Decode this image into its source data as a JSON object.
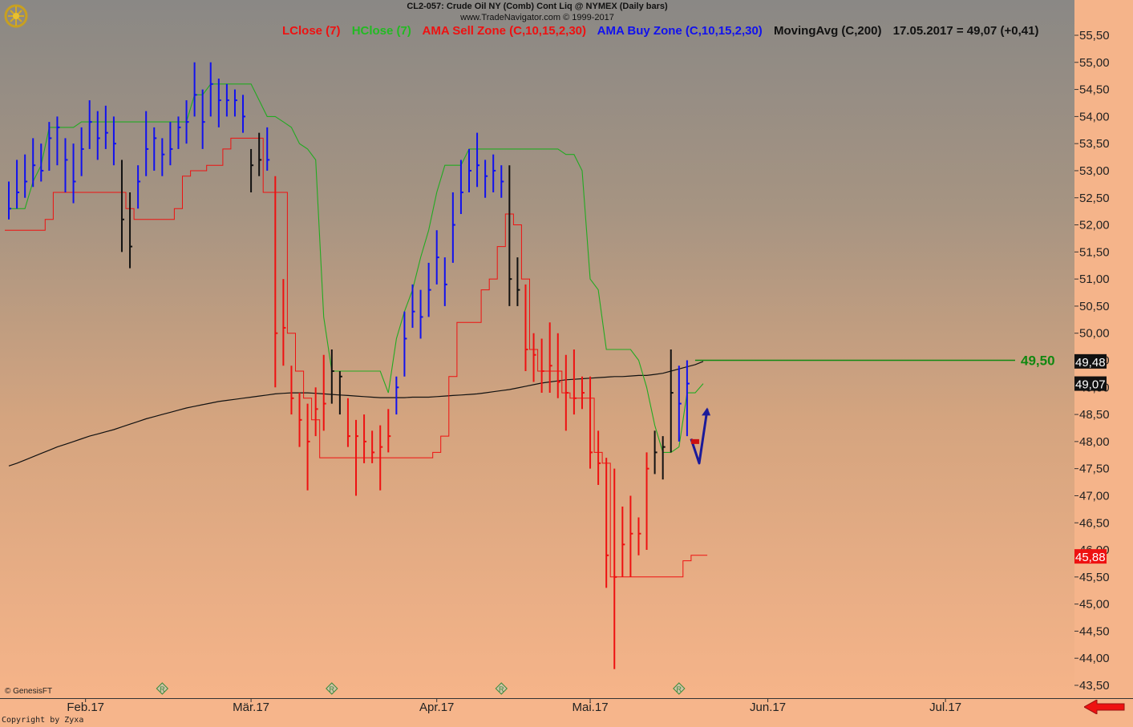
{
  "header": {
    "title": "CL2-057:  Crude Oil NY (Comb) Cont Liq @ NYMEX  (Daily bars)",
    "source": "www.TradeNavigator.com © 1999-2017"
  },
  "legend": [
    {
      "label": "LClose (7)",
      "color": "#ee1111"
    },
    {
      "label": "HClose (7)",
      "color": "#22bb22"
    },
    {
      "label": "AMA Sell Zone (C,10,15,2,30)",
      "color": "#ee1111"
    },
    {
      "label": "AMA Buy Zone (C,10,15,2,30)",
      "color": "#1111ee"
    },
    {
      "label": "MovingAvg (C,200)",
      "color": "#111111"
    },
    {
      "label": "17.05.2017 = 49,07 (+0,41)",
      "color": "#111111"
    }
  ],
  "footer": {
    "genesis": "© GenesisFT",
    "copyright": "Copyright by Zyxa"
  },
  "colors": {
    "sell": "#ee1111",
    "buy": "#1111ee",
    "neutral": "#111111",
    "hclose": "#22aa22",
    "ma": "#111111",
    "target": "#118811",
    "bg_top": "#8a8885",
    "bg_bottom": "#f6b489"
  },
  "chart_data": {
    "type": "ohlc",
    "ylim": [
      43.2,
      55.8
    ],
    "y_ticks": [
      "55,50",
      "55,00",
      "54,50",
      "54,00",
      "53,50",
      "53,00",
      "52,50",
      "52,00",
      "51,50",
      "51,00",
      "50,50",
      "50,00",
      "49,50",
      "49,00",
      "48,50",
      "48,00",
      "47,50",
      "47,00",
      "46,50",
      "46,00",
      "45,50",
      "45,00",
      "44,50",
      "44,00",
      "43,50"
    ],
    "x_labels": [
      {
        "label": "Feb.17",
        "index": 9.5
      },
      {
        "label": "Mär.17",
        "index": 30
      },
      {
        "label": "Apr.17",
        "index": 53
      },
      {
        "label": "Mai.17",
        "index": 72
      },
      {
        "label": "Jun.17",
        "index": 94
      },
      {
        "label": "Jul.17",
        "index": 116
      }
    ],
    "r_markers": [
      19,
      40,
      61,
      83
    ],
    "bars": [
      {
        "h": 52.8,
        "l": 52.1,
        "c": 52.3,
        "z": "buy"
      },
      {
        "h": 53.2,
        "l": 52.3,
        "c": 52.6,
        "z": "buy"
      },
      {
        "h": 53.3,
        "l": 52.5,
        "c": 52.8,
        "z": "buy"
      },
      {
        "h": 53.6,
        "l": 52.7,
        "c": 53.1,
        "z": "buy"
      },
      {
        "h": 53.5,
        "l": 52.8,
        "c": 53.0,
        "z": "buy"
      },
      {
        "h": 53.9,
        "l": 53.0,
        "c": 53.6,
        "z": "buy"
      },
      {
        "h": 54.0,
        "l": 53.1,
        "c": 53.8,
        "z": "buy"
      },
      {
        "h": 53.6,
        "l": 52.6,
        "c": 53.2,
        "z": "buy"
      },
      {
        "h": 53.5,
        "l": 52.4,
        "c": 52.8,
        "z": "buy"
      },
      {
        "h": 53.8,
        "l": 52.9,
        "c": 53.4,
        "z": "buy"
      },
      {
        "h": 54.3,
        "l": 53.4,
        "c": 53.9,
        "z": "buy"
      },
      {
        "h": 54.1,
        "l": 53.2,
        "c": 53.6,
        "z": "buy"
      },
      {
        "h": 54.2,
        "l": 53.4,
        "c": 53.7,
        "z": "buy"
      },
      {
        "h": 54.0,
        "l": 53.1,
        "c": 53.5,
        "z": "buy"
      },
      {
        "h": 53.2,
        "l": 51.5,
        "c": 52.1,
        "z": "neutral"
      },
      {
        "h": 52.6,
        "l": 51.2,
        "c": 51.6,
        "z": "neutral"
      },
      {
        "h": 53.1,
        "l": 52.3,
        "c": 52.8,
        "z": "buy"
      },
      {
        "h": 54.1,
        "l": 52.9,
        "c": 53.4,
        "z": "buy"
      },
      {
        "h": 53.8,
        "l": 53.0,
        "c": 53.6,
        "z": "buy"
      },
      {
        "h": 53.6,
        "l": 52.9,
        "c": 53.3,
        "z": "buy"
      },
      {
        "h": 53.9,
        "l": 53.1,
        "c": 53.4,
        "z": "buy"
      },
      {
        "h": 54.0,
        "l": 53.4,
        "c": 53.8,
        "z": "buy"
      },
      {
        "h": 54.3,
        "l": 53.5,
        "c": 53.9,
        "z": "buy"
      },
      {
        "h": 55.0,
        "l": 54.0,
        "c": 54.4,
        "z": "buy"
      },
      {
        "h": 54.5,
        "l": 53.4,
        "c": 53.9,
        "z": "buy"
      },
      {
        "h": 55.0,
        "l": 54.0,
        "c": 54.6,
        "z": "buy"
      },
      {
        "h": 54.7,
        "l": 53.8,
        "c": 54.3,
        "z": "buy"
      },
      {
        "h": 54.6,
        "l": 54.0,
        "c": 54.3,
        "z": "buy"
      },
      {
        "h": 54.5,
        "l": 54.0,
        "c": 54.3,
        "z": "buy"
      },
      {
        "h": 54.4,
        "l": 53.7,
        "c": 54.0,
        "z": "buy"
      },
      {
        "h": 53.4,
        "l": 52.6,
        "c": 53.1,
        "z": "neutral"
      },
      {
        "h": 53.7,
        "l": 52.9,
        "c": 53.2,
        "z": "neutral"
      },
      {
        "h": 53.8,
        "l": 53.0,
        "c": 53.2,
        "z": "buy"
      },
      {
        "h": 52.9,
        "l": 49.0,
        "c": 50.0,
        "z": "sell"
      },
      {
        "h": 51.0,
        "l": 49.4,
        "c": 50.1,
        "z": "sell"
      },
      {
        "h": 49.4,
        "l": 48.5,
        "c": 48.8,
        "z": "sell"
      },
      {
        "h": 48.9,
        "l": 47.9,
        "c": 48.4,
        "z": "sell"
      },
      {
        "h": 48.7,
        "l": 47.1,
        "c": 48.0,
        "z": "sell"
      },
      {
        "h": 49.0,
        "l": 48.1,
        "c": 48.6,
        "z": "sell"
      },
      {
        "h": 49.6,
        "l": 48.2,
        "c": 48.7,
        "z": "sell"
      },
      {
        "h": 49.7,
        "l": 48.7,
        "c": 49.3,
        "z": "neutral"
      },
      {
        "h": 49.3,
        "l": 48.5,
        "c": 49.2,
        "z": "neutral"
      },
      {
        "h": 48.8,
        "l": 47.9,
        "c": 48.1,
        "z": "sell"
      },
      {
        "h": 48.4,
        "l": 47.0,
        "c": 48.1,
        "z": "sell"
      },
      {
        "h": 48.5,
        "l": 47.6,
        "c": 48.0,
        "z": "sell"
      },
      {
        "h": 48.2,
        "l": 47.6,
        "c": 47.8,
        "z": "sell"
      },
      {
        "h": 48.3,
        "l": 47.1,
        "c": 47.9,
        "z": "sell"
      },
      {
        "h": 48.6,
        "l": 47.8,
        "c": 48.1,
        "z": "sell"
      },
      {
        "h": 49.2,
        "l": 48.5,
        "c": 49.0,
        "z": "buy"
      },
      {
        "h": 50.4,
        "l": 49.2,
        "c": 49.9,
        "z": "buy"
      },
      {
        "h": 50.9,
        "l": 50.1,
        "c": 50.4,
        "z": "buy"
      },
      {
        "h": 50.8,
        "l": 49.9,
        "c": 50.3,
        "z": "buy"
      },
      {
        "h": 51.3,
        "l": 50.3,
        "c": 50.8,
        "z": "buy"
      },
      {
        "h": 51.9,
        "l": 50.9,
        "c": 51.4,
        "z": "buy"
      },
      {
        "h": 51.4,
        "l": 50.5,
        "c": 50.9,
        "z": "buy"
      },
      {
        "h": 52.6,
        "l": 51.3,
        "c": 52.0,
        "z": "buy"
      },
      {
        "h": 53.2,
        "l": 52.2,
        "c": 52.6,
        "z": "buy"
      },
      {
        "h": 53.4,
        "l": 52.6,
        "c": 53.0,
        "z": "buy"
      },
      {
        "h": 53.7,
        "l": 52.7,
        "c": 53.1,
        "z": "buy"
      },
      {
        "h": 53.2,
        "l": 52.5,
        "c": 52.9,
        "z": "buy"
      },
      {
        "h": 53.3,
        "l": 52.6,
        "c": 53.0,
        "z": "buy"
      },
      {
        "h": 53.1,
        "l": 52.5,
        "c": 52.8,
        "z": "buy"
      },
      {
        "h": 53.1,
        "l": 50.5,
        "c": 51.0,
        "z": "neutral"
      },
      {
        "h": 51.4,
        "l": 50.5,
        "c": 50.8,
        "z": "neutral"
      },
      {
        "h": 50.9,
        "l": 49.3,
        "c": 49.7,
        "z": "sell"
      },
      {
        "h": 50.0,
        "l": 49.1,
        "c": 49.6,
        "z": "sell"
      },
      {
        "h": 49.9,
        "l": 48.9,
        "c": 49.3,
        "z": "sell"
      },
      {
        "h": 50.2,
        "l": 48.9,
        "c": 49.4,
        "z": "sell"
      },
      {
        "h": 50.0,
        "l": 48.8,
        "c": 49.1,
        "z": "sell"
      },
      {
        "h": 49.6,
        "l": 48.2,
        "c": 48.9,
        "z": "sell"
      },
      {
        "h": 49.7,
        "l": 48.5,
        "c": 48.8,
        "z": "sell"
      },
      {
        "h": 49.2,
        "l": 48.6,
        "c": 48.9,
        "z": "sell"
      },
      {
        "h": 49.2,
        "l": 47.5,
        "c": 47.8,
        "z": "sell"
      },
      {
        "h": 48.2,
        "l": 47.2,
        "c": 47.6,
        "z": "sell"
      },
      {
        "h": 47.7,
        "l": 45.3,
        "c": 45.9,
        "z": "sell"
      },
      {
        "h": 47.5,
        "l": 43.8,
        "c": 45.5,
        "z": "sell"
      },
      {
        "h": 46.8,
        "l": 45.5,
        "c": 46.1,
        "z": "sell"
      },
      {
        "h": 47.0,
        "l": 45.5,
        "c": 46.3,
        "z": "sell"
      },
      {
        "h": 46.6,
        "l": 45.9,
        "c": 46.3,
        "z": "sell"
      },
      {
        "h": 47.8,
        "l": 46.0,
        "c": 47.5,
        "z": "sell"
      },
      {
        "h": 48.2,
        "l": 47.4,
        "c": 47.8,
        "z": "neutral"
      },
      {
        "h": 48.1,
        "l": 47.3,
        "c": 47.9,
        "z": "neutral"
      },
      {
        "h": 49.7,
        "l": 47.8,
        "c": 48.9,
        "z": "neutral"
      },
      {
        "h": 49.4,
        "l": 48.0,
        "c": 48.7,
        "z": "buy"
      },
      {
        "h": 49.5,
        "l": 48.1,
        "c": 49.07,
        "z": "buy"
      }
    ],
    "hclose_line": [
      52.3,
      52.3,
      52.3,
      52.8,
      53.1,
      53.8,
      53.8,
      53.8,
      53.8,
      53.9,
      53.9,
      53.9,
      53.9,
      53.9,
      53.9,
      53.9,
      53.9,
      53.9,
      53.9,
      53.9,
      53.9,
      53.9,
      53.9,
      54.4,
      54.4,
      54.6,
      54.6,
      54.6,
      54.6,
      54.6,
      54.6,
      54.3,
      54.0,
      54.0,
      53.9,
      53.8,
      53.5,
      53.4,
      53.2,
      50.3,
      49.3,
      49.3,
      49.3,
      49.3,
      49.3,
      49.3,
      49.3,
      48.9,
      49.9,
      50.4,
      50.8,
      51.4,
      51.9,
      52.6,
      53.1,
      53.1,
      53.1,
      53.4,
      53.4,
      53.4,
      53.4,
      53.4,
      53.4,
      53.4,
      53.4,
      53.4,
      53.4,
      53.4,
      53.4,
      53.3,
      53.3,
      53.0,
      51.0,
      50.8,
      49.7,
      49.7,
      49.7,
      49.7,
      49.5,
      49.0,
      48.3,
      47.8,
      47.8,
      47.9,
      48.9,
      48.9,
      49.07
    ],
    "lclose_line": [
      51.9,
      51.9,
      51.9,
      51.9,
      51.9,
      52.1,
      52.6,
      52.6,
      52.6,
      52.6,
      52.6,
      52.6,
      52.6,
      52.6,
      52.6,
      52.3,
      52.1,
      52.1,
      52.1,
      52.1,
      52.1,
      52.3,
      52.9,
      53.0,
      53.0,
      53.1,
      53.1,
      53.4,
      53.6,
      53.6,
      53.6,
      53.6,
      52.6,
      52.6,
      52.6,
      50.0,
      49.3,
      48.8,
      48.4,
      47.7,
      47.7,
      47.7,
      47.7,
      47.7,
      47.7,
      47.7,
      47.7,
      47.7,
      47.7,
      47.7,
      47.7,
      47.7,
      47.7,
      47.8,
      48.1,
      49.2,
      50.2,
      50.2,
      50.2,
      50.8,
      51.0,
      51.6,
      52.2,
      52.0,
      51.0,
      49.7,
      49.3,
      49.3,
      49.3,
      48.9,
      48.8,
      48.8,
      48.8,
      47.8,
      47.6,
      45.5,
      45.5,
      45.5,
      45.5,
      45.5,
      45.5,
      45.5,
      45.5,
      45.5,
      45.8,
      45.9,
      45.9
    ],
    "ma_line": [
      47.55,
      47.6,
      47.66,
      47.72,
      47.78,
      47.84,
      47.9,
      47.95,
      48.0,
      48.05,
      48.1,
      48.14,
      48.18,
      48.22,
      48.27,
      48.32,
      48.37,
      48.42,
      48.46,
      48.5,
      48.54,
      48.58,
      48.62,
      48.65,
      48.68,
      48.71,
      48.74,
      48.76,
      48.78,
      48.8,
      48.82,
      48.84,
      48.86,
      48.88,
      48.89,
      48.9,
      48.9,
      48.9,
      48.89,
      48.88,
      48.87,
      48.86,
      48.85,
      48.84,
      48.83,
      48.82,
      48.81,
      48.81,
      48.81,
      48.81,
      48.82,
      48.82,
      48.82,
      48.83,
      48.84,
      48.85,
      48.86,
      48.87,
      48.88,
      48.9,
      48.92,
      48.94,
      48.96,
      48.99,
      49.02,
      49.05,
      49.08,
      49.1,
      49.12,
      49.14,
      49.15,
      49.16,
      49.17,
      49.18,
      49.19,
      49.2,
      49.2,
      49.21,
      49.22,
      49.22,
      49.24,
      49.26,
      49.3,
      49.34,
      49.38,
      49.42,
      49.48
    ],
    "target_line": {
      "value": 49.5,
      "label": "49,50",
      "from_index": 85
    },
    "price_boxes": [
      {
        "value": 49.48,
        "label": "49,48",
        "bg": "#111111",
        "fg": "#ffffff"
      },
      {
        "value": 49.07,
        "label": "49,07",
        "bg": "#111111",
        "fg": "#ffffff"
      },
      {
        "value": 45.88,
        "label": "45,88",
        "bg": "#ee1111",
        "fg": "#ffffff"
      }
    ],
    "drawn_arrow": {
      "color": "#1a1a9a",
      "points": [
        [
          84.5,
          48.05
        ],
        [
          85.5,
          47.6
        ],
        [
          86.5,
          48.6
        ]
      ],
      "marker_value": 48.0
    }
  }
}
